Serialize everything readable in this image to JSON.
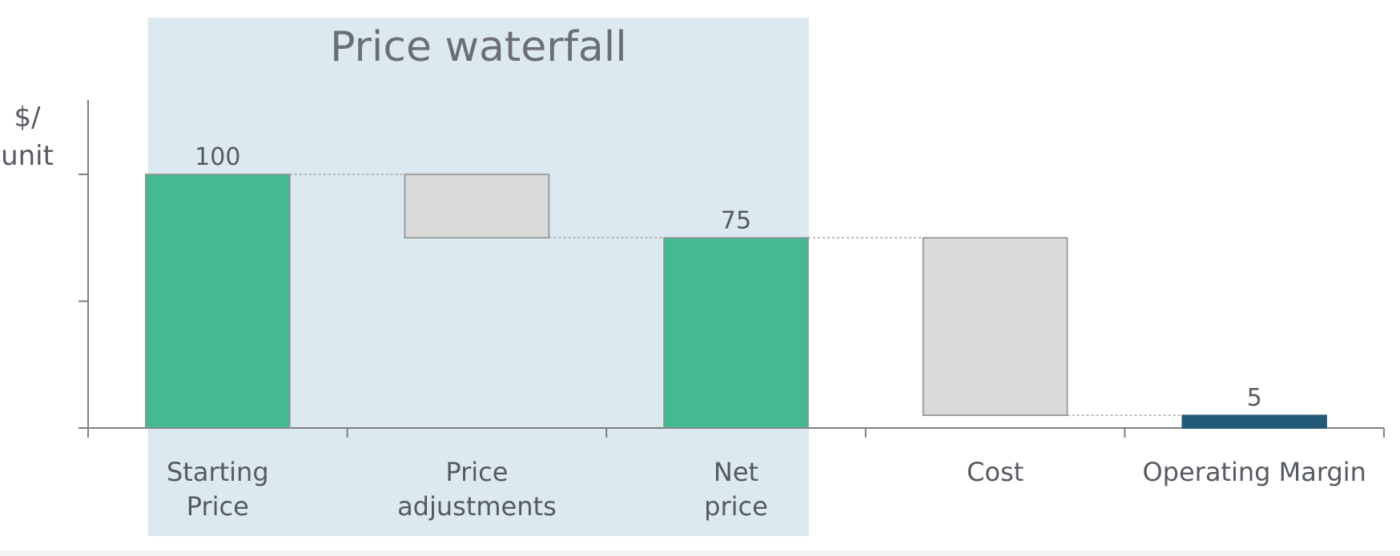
{
  "chart_data": {
    "type": "waterfall",
    "title": "Price waterfall",
    "ylabel": [
      "$/",
      "unit"
    ],
    "ylim": [
      0,
      130
    ],
    "yticks": [
      0,
      50,
      100
    ],
    "categories": [
      [
        "Starting",
        "Price"
      ],
      [
        "Price",
        "adjustments"
      ],
      [
        "Net",
        "price"
      ],
      [
        "Cost"
      ],
      [
        "Operating Margin"
      ]
    ],
    "steps": [
      {
        "kind": "total",
        "base": 0,
        "top": 100,
        "label": "100"
      },
      {
        "kind": "delta",
        "base": 75,
        "top": 100,
        "label": ""
      },
      {
        "kind": "total",
        "base": 0,
        "top": 75,
        "label": "75"
      },
      {
        "kind": "delta",
        "base": 5,
        "top": 75,
        "label": ""
      },
      {
        "kind": "result",
        "base": 0,
        "top": 5,
        "label": "5"
      }
    ],
    "highlight_range": [
      0,
      2
    ],
    "colors": {
      "total": "#45b992",
      "delta": "#d9d9d9",
      "result": "#245a78",
      "highlight": "#dce9f0",
      "axis": "#7f7f7f",
      "text": "#555a61",
      "title": "#6b6f75",
      "connector": "#a6a6a6"
    }
  }
}
